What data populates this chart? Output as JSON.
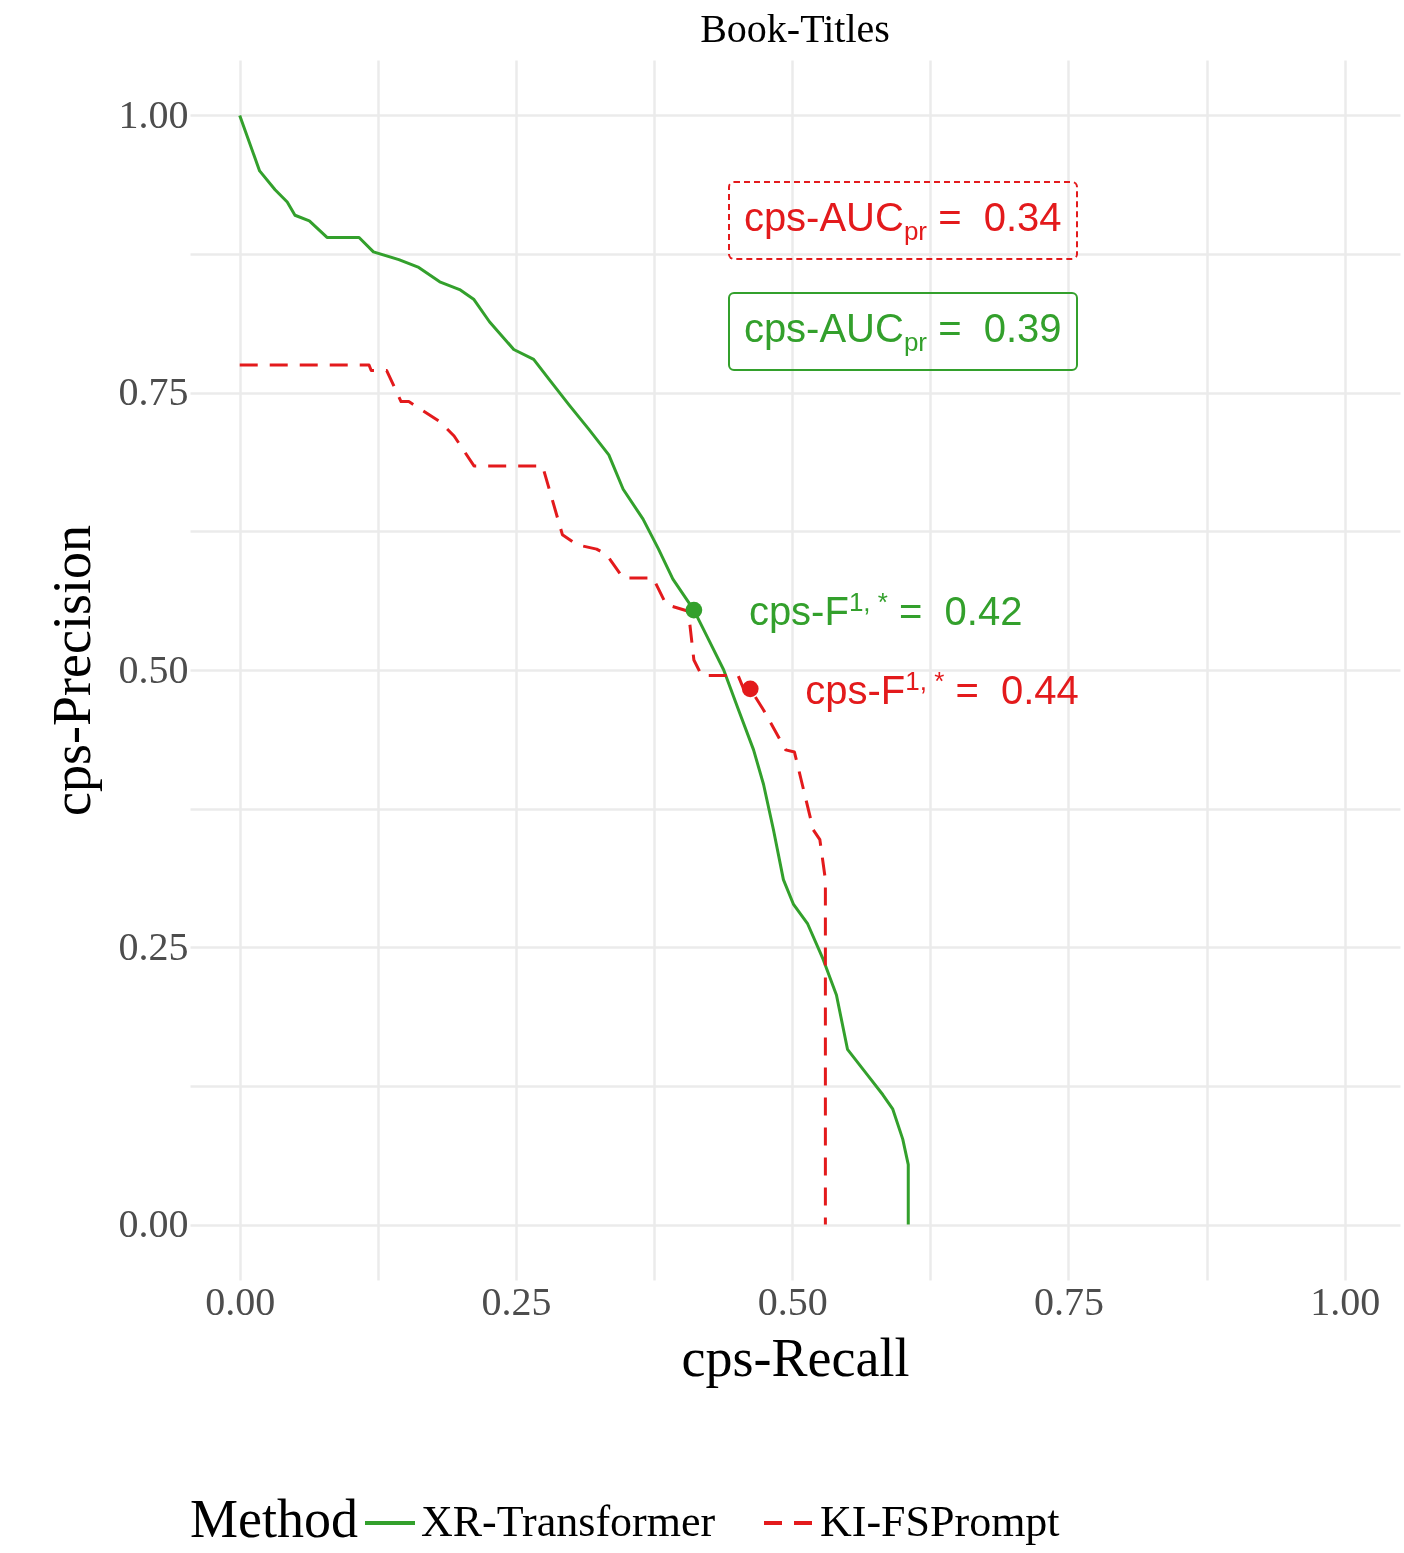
{
  "chart_data": {
    "type": "line",
    "title": "Book-Titles",
    "xlabel": "cps-Recall",
    "ylabel": "cps-Precision",
    "legend_title": "Method",
    "xlim": [
      -0.045,
      1.05
    ],
    "ylim": [
      -0.05,
      1.05
    ],
    "xticks": [
      {
        "value": 0,
        "label": "0.00"
      },
      {
        "value": 0.125,
        "label": null
      },
      {
        "value": 0.25,
        "label": "0.25"
      },
      {
        "value": 0.375,
        "label": null
      },
      {
        "value": 0.5,
        "label": "0.50"
      },
      {
        "value": 0.625,
        "label": null
      },
      {
        "value": 0.75,
        "label": "0.75"
      },
      {
        "value": 0.875,
        "label": null
      },
      {
        "value": 1,
        "label": "1.00"
      }
    ],
    "yticks": [
      {
        "value": 0,
        "label": "0.00"
      },
      {
        "value": 0.125,
        "label": null
      },
      {
        "value": 0.25,
        "label": "0.25"
      },
      {
        "value": 0.375,
        "label": null
      },
      {
        "value": 0.5,
        "label": "0.50"
      },
      {
        "value": 0.625,
        "label": null
      },
      {
        "value": 0.75,
        "label": "0.75"
      },
      {
        "value": 0.875,
        "label": null
      },
      {
        "value": 1,
        "label": "1.00"
      }
    ],
    "grid": true,
    "legend": "bottom",
    "series": [
      {
        "name": "XR-Transformer",
        "line_style": "solid",
        "color": "#33a02c",
        "x": [
          0,
          0.018,
          0.032,
          0.043,
          0.05,
          0.063,
          0.079,
          0.108,
          0.121,
          0.144,
          0.162,
          0.181,
          0.199,
          0.212,
          0.226,
          0.248,
          0.266,
          0.28,
          0.298,
          0.316,
          0.334,
          0.347,
          0.365,
          0.379,
          0.392,
          0.411,
          0.424,
          0.438,
          0.451,
          0.465,
          0.474,
          0.483,
          0.492,
          0.501,
          0.514,
          0.528,
          0.54,
          0.55,
          0.568,
          0.582,
          0.591,
          0.6,
          0.605,
          0.605
        ],
        "values": [
          1.0,
          0.95,
          0.933,
          0.922,
          0.91,
          0.905,
          0.89,
          0.89,
          0.877,
          0.87,
          0.863,
          0.85,
          0.843,
          0.834,
          0.814,
          0.789,
          0.78,
          0.762,
          0.739,
          0.717,
          0.694,
          0.663,
          0.636,
          0.609,
          0.582,
          0.554,
          0.528,
          0.5,
          0.465,
          0.428,
          0.397,
          0.356,
          0.311,
          0.289,
          0.271,
          0.239,
          0.207,
          0.158,
          0.135,
          0.117,
          0.104,
          0.077,
          0.054,
          0.0
        ]
      },
      {
        "name": "KI-FSPrompt",
        "line_style": "dashed",
        "color": "#e31a1c",
        "x": [
          0,
          0.117,
          0.119,
          0.133,
          0.146,
          0.153,
          0.181,
          0.194,
          0.212,
          0.274,
          0.292,
          0.305,
          0.323,
          0.332,
          0.347,
          0.374,
          0.386,
          0.406,
          0.411,
          0.418,
          0.451,
          0.456,
          0.462,
          0.474,
          0.494,
          0.502,
          0.519,
          0.525,
          0.53,
          0.53
        ],
        "values": [
          0.775,
          0.775,
          0.77,
          0.77,
          0.742,
          0.742,
          0.724,
          0.711,
          0.684,
          0.684,
          0.622,
          0.613,
          0.609,
          0.604,
          0.583,
          0.583,
          0.559,
          0.553,
          0.509,
          0.495,
          0.495,
          0.483,
          0.483,
          0.464,
          0.428,
          0.426,
          0.356,
          0.347,
          0.311,
          0.0
        ]
      },
      {
        "type": "scatter",
        "marker": "circle",
        "color": "#33a02c",
        "x": [
          0.411
        ],
        "values": [
          0.554
        ]
      },
      {
        "type": "scatter",
        "marker": "circle",
        "color": "#e31a1c",
        "x": [
          0.462
        ],
        "values": [
          0.483
        ]
      }
    ],
    "annotations": [
      "cps-AUC$_{pr}$ =  0.34",
      "cps-AUC$_{pr}$ =  0.39",
      {
        "text": "cps-F$^{1, *}$ =  0.42",
        "x": 0.411,
        "y": 0.554
      },
      {
        "text": "cps-F$^{1, *}$ =  0.44",
        "x": 0.462,
        "y": 0.483
      }
    ]
  }
}
